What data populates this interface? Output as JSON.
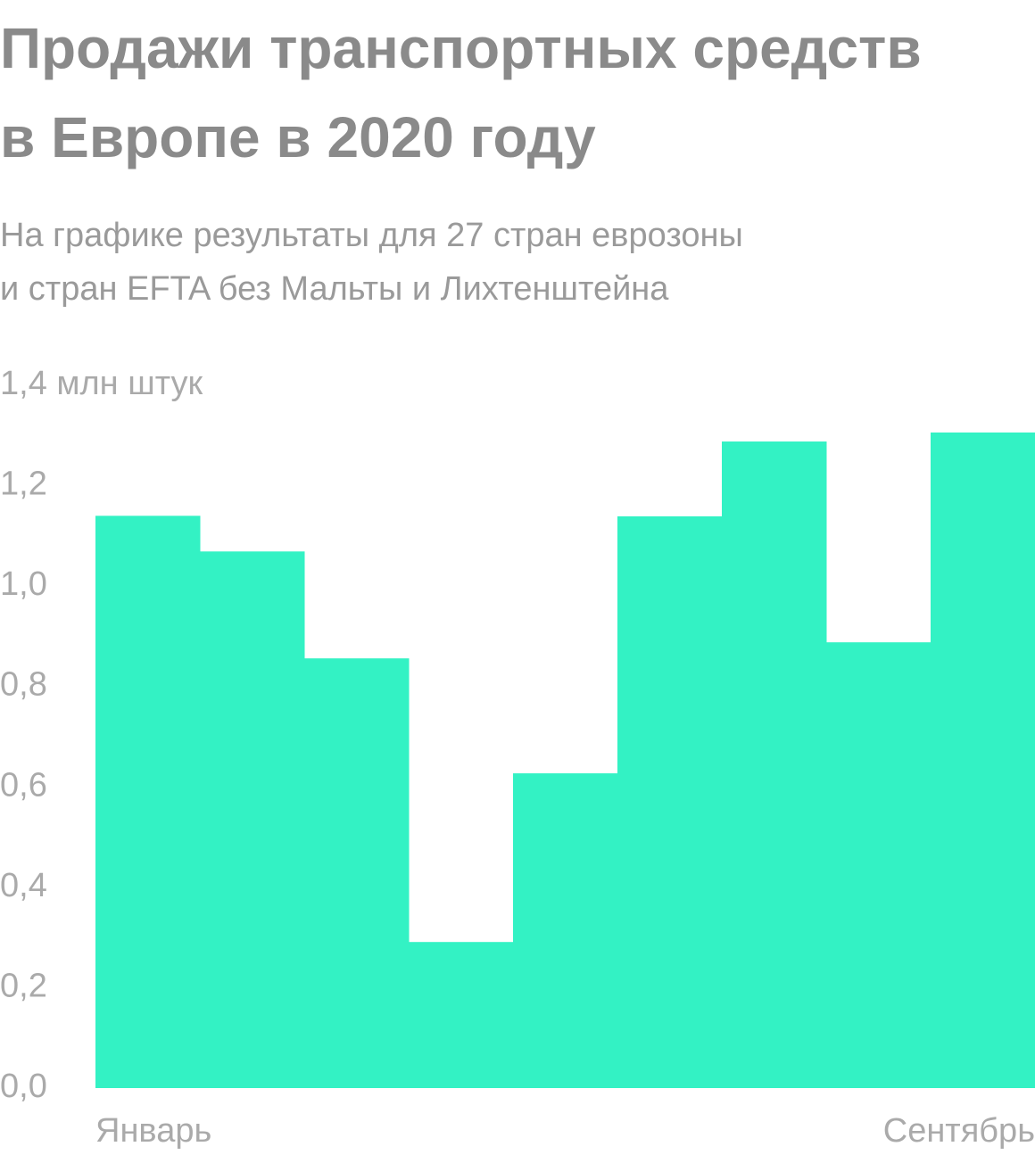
{
  "chart_data": {
    "type": "bar",
    "title": [
      "Продажи транспортных средств",
      "в Европе в 2020 году"
    ],
    "subtitle": [
      "На графике результаты для 27 стран еврозоны",
      "и стран EFTA без Мальты и Лихтенштейна"
    ],
    "categories": [
      "Январь",
      null,
      null,
      null,
      null,
      null,
      null,
      null,
      "Сентябрь"
    ],
    "values": [
      1.14,
      1.069,
      0.856,
      0.291,
      0.627,
      1.139,
      1.288,
      0.888,
      1.306
    ],
    "color": "#33f2c4",
    "ylim": [
      0,
      1.4
    ],
    "yticks": [
      {
        "value": 0,
        "label": "0,0"
      },
      {
        "value": 0.2,
        "label": "0,2"
      },
      {
        "value": 0.4,
        "label": "0,4"
      },
      {
        "value": 0.6,
        "label": "0,6"
      },
      {
        "value": 0.8,
        "label": "0,8"
      },
      {
        "value": 1,
        "label": "1,0"
      },
      {
        "value": 1.2,
        "label": "1,2"
      },
      {
        "value": 1.4,
        "label": "1,4 млн штук"
      }
    ],
    "grid": false
  }
}
